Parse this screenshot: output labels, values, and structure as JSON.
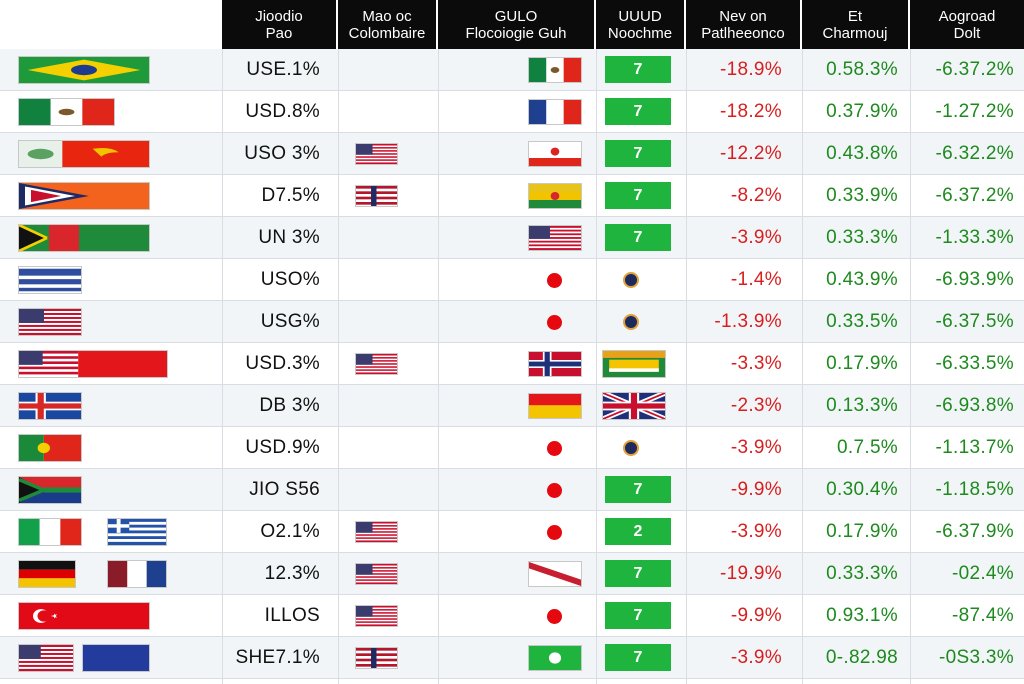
{
  "columns": [
    {
      "line1": "Jioodio",
      "line2": "Pao"
    },
    {
      "line1": "Mao oc",
      "line2": "Colombaire"
    },
    {
      "line1": "GULO",
      "line2": "Flocoiogie Guh"
    },
    {
      "line1": "UUUD",
      "line2": "Noochme"
    },
    {
      "line1": "Nev on",
      "line2": "Patlheeonco"
    },
    {
      "line1": "Et",
      "line2": "Charmouj"
    },
    {
      "line1": "Aogroad",
      "line2": "Dolt"
    }
  ],
  "rows": [
    {
      "rate": "USE.1%",
      "c2": "",
      "c3": "flag",
      "c4": "7",
      "change": "-18.9%",
      "ep": "0.58.3%",
      "adj": "-6.37.2%"
    },
    {
      "rate": "USD.8%",
      "c2": "",
      "c3": "flag",
      "c4": "7",
      "change": "-18.2%",
      "ep": "0.37.9%",
      "adj": "-1.27.2%"
    },
    {
      "rate": "USO 3%",
      "c2": "flag",
      "c3": "flag",
      "c4": "7",
      "change": "-12.2%",
      "ep": "0.43.8%",
      "adj": "-6.32.2%"
    },
    {
      "rate": "D7.5%",
      "c2": "flag",
      "c3": "flag",
      "c4": "7",
      "change": "-8.2%",
      "ep": "0.33.9%",
      "adj": "-6.37.2%"
    },
    {
      "rate": "UN 3%",
      "c2": "",
      "c3": "flag",
      "c4": "7",
      "change": "-3.9%",
      "ep": "0.33.3%",
      "adj": "-1.33.3%"
    },
    {
      "rate": "USO%",
      "c2": "",
      "c3": "dot",
      "c4": "coin",
      "change": "-1.4%",
      "ep": "0.43.9%",
      "adj": "-6.93.9%"
    },
    {
      "rate": "USG%",
      "c2": "",
      "c3": "dot",
      "c4": "coin",
      "change": "-1.3.9%",
      "ep": "0.33.5%",
      "adj": "-6.37.5%"
    },
    {
      "rate": "USD.3%",
      "c2": "flag",
      "c3": "flag",
      "c4": "flag",
      "change": "-3.3%",
      "ep": "0.17.9%",
      "adj": "-6.33.5%"
    },
    {
      "rate": "DB 3%",
      "c2": "",
      "c3": "flag",
      "c4": "flag",
      "change": "-2.3%",
      "ep": "0.13.3%",
      "adj": "-6.93.8%"
    },
    {
      "rate": "USD.9%",
      "c2": "",
      "c3": "dot",
      "c4": "coin",
      "change": "-3.9%",
      "ep": "0.7.5%",
      "adj": "-1.13.7%"
    },
    {
      "rate": "JIO S56",
      "c2": "",
      "c3": "dot",
      "c4": "7",
      "change": "-9.9%",
      "ep": "0.30.4%",
      "adj": "-1.18.5%"
    },
    {
      "rate": "O2.1%",
      "c2": "flag",
      "c3": "dot",
      "c4": "2",
      "change": "-3.9%",
      "ep": "0.17.9%",
      "adj": "-6.37.9%"
    },
    {
      "rate": "12.3%",
      "c2": "flag",
      "c3": "flag",
      "c4": "7",
      "change": "-19.9%",
      "ep": "0.33.3%",
      "adj": "-02.4%"
    },
    {
      "rate": "ILLOS",
      "c2": "flag",
      "c3": "dot",
      "c4": "7",
      "change": "-9.9%",
      "ep": "0.93.1%",
      "adj": "-87.4%"
    },
    {
      "rate": "SHE7.1%",
      "c2": "flag",
      "c3": "badge",
      "c4": "7",
      "change": "-3.9%",
      "ep": "0-.82.98",
      "adj": "-0S3.3%"
    }
  ],
  "colors": {
    "header_bg": "#0b0b0b",
    "negative": "#d81e1e",
    "positive": "#1d8a1d",
    "badge": "#1fb43d",
    "row_alt": "#f2f5f8"
  }
}
